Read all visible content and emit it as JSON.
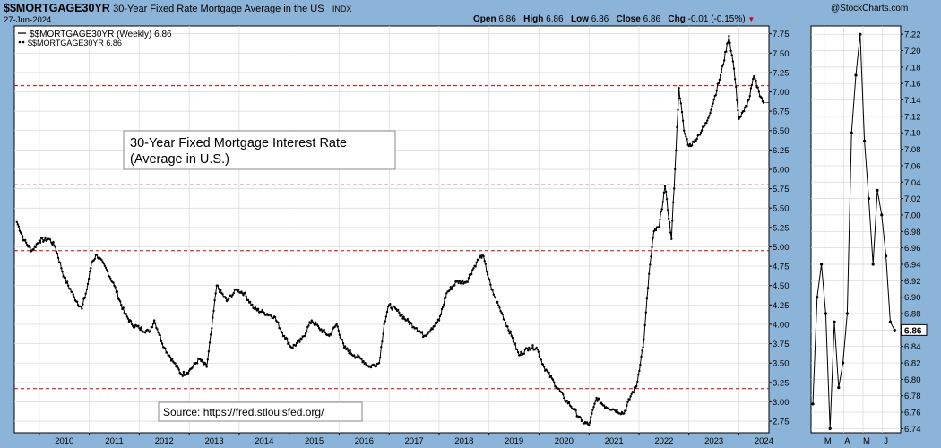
{
  "header": {
    "symbol": "$$MORTGAGE30YR",
    "description": "30-Year Fixed Rate Mortgage Average in the US",
    "exchange": "INDX",
    "date": "27-Jun-2024",
    "logo": "@StockCharts.com",
    "ohlc": {
      "open_label": "Open",
      "open": "6.86",
      "high_label": "High",
      "high": "6.86",
      "low_label": "Low",
      "low": "6.86",
      "close_label": "Close",
      "close": "6.86",
      "chg_label": "Chg",
      "chg": "-0.01 (-0.15%)"
    }
  },
  "legend": {
    "line_entry": "$$MORTGAGE30YR (Weekly) 6.86",
    "dot_entry": "$$MORTGAGE30YR 6.86"
  },
  "annotation": {
    "title_line1": "30-Year Fixed Mortgage Interest Rate",
    "title_line2": "(Average in U.S.)",
    "source": "Source: https://fred.stlouisfed.org/"
  },
  "colors": {
    "background": "#8cb4d8",
    "plot": "#ffffff",
    "line": "#000000",
    "reference_line": "#cc0000",
    "grid": "#d8d8d8"
  },
  "chart_data": [
    {
      "type": "line",
      "frequency": "weekly",
      "ylim": [
        2.6,
        7.85
      ],
      "y_ticks": [
        2.75,
        3.0,
        3.25,
        3.5,
        3.75,
        4.0,
        4.25,
        4.5,
        4.75,
        5.0,
        5.25,
        5.5,
        5.75,
        6.0,
        6.25,
        6.5,
        6.75,
        7.0,
        7.25,
        7.5,
        7.75
      ],
      "y_tick_labels": [
        "2.75",
        "3.00",
        "3.25",
        "3.50",
        "3.75",
        "4.00",
        "4.25",
        "4.50",
        "4.75",
        "5.00",
        "5.25",
        "5.50",
        "5.75",
        "6.00",
        "6.25",
        "6.50",
        "6.75",
        "7.00",
        "7.25",
        "7.50",
        "7.75"
      ],
      "x_ticks": [
        "2010",
        "2011",
        "2012",
        "2013",
        "2014",
        "2015",
        "2016",
        "2017",
        "2018",
        "2019",
        "2020",
        "2021",
        "2022",
        "2023",
        "2024"
      ],
      "xlim": [
        2009.5,
        2024.6
      ],
      "reference_lines": [
        7.08,
        5.8,
        4.95,
        3.17
      ],
      "grid": true,
      "current_value": "6.86",
      "series": [
        {
          "points": [
            [
              2009.55,
              5.32
            ],
            [
              2009.7,
              5.08
            ],
            [
              2009.85,
              4.95
            ],
            [
              2010.0,
              5.08
            ],
            [
              2010.2,
              5.1
            ],
            [
              2010.32,
              5.0
            ],
            [
              2010.5,
              4.6
            ],
            [
              2010.7,
              4.35
            ],
            [
              2010.85,
              4.2
            ],
            [
              2010.95,
              4.45
            ],
            [
              2011.05,
              4.8
            ],
            [
              2011.15,
              4.9
            ],
            [
              2011.35,
              4.7
            ],
            [
              2011.5,
              4.5
            ],
            [
              2011.7,
              4.15
            ],
            [
              2011.85,
              4.0
            ],
            [
              2012.0,
              3.95
            ],
            [
              2012.2,
              3.9
            ],
            [
              2012.3,
              4.05
            ],
            [
              2012.5,
              3.7
            ],
            [
              2012.7,
              3.5
            ],
            [
              2012.85,
              3.35
            ],
            [
              2013.0,
              3.4
            ],
            [
              2013.2,
              3.55
            ],
            [
              2013.35,
              3.45
            ],
            [
              2013.45,
              3.95
            ],
            [
              2013.55,
              4.5
            ],
            [
              2013.75,
              4.3
            ],
            [
              2013.95,
              4.45
            ],
            [
              2014.1,
              4.4
            ],
            [
              2014.3,
              4.2
            ],
            [
              2014.5,
              4.15
            ],
            [
              2014.7,
              4.1
            ],
            [
              2014.9,
              3.85
            ],
            [
              2015.05,
              3.7
            ],
            [
              2015.25,
              3.8
            ],
            [
              2015.45,
              4.05
            ],
            [
              2015.6,
              3.95
            ],
            [
              2015.8,
              3.85
            ],
            [
              2015.95,
              4.0
            ],
            [
              2016.1,
              3.7
            ],
            [
              2016.3,
              3.6
            ],
            [
              2016.45,
              3.55
            ],
            [
              2016.6,
              3.45
            ],
            [
              2016.8,
              3.5
            ],
            [
              2016.9,
              4.0
            ],
            [
              2017.0,
              4.25
            ],
            [
              2017.2,
              4.15
            ],
            [
              2017.35,
              4.05
            ],
            [
              2017.55,
              3.95
            ],
            [
              2017.7,
              3.85
            ],
            [
              2017.85,
              3.95
            ],
            [
              2018.0,
              4.05
            ],
            [
              2018.15,
              4.4
            ],
            [
              2018.35,
              4.55
            ],
            [
              2018.55,
              4.55
            ],
            [
              2018.75,
              4.8
            ],
            [
              2018.87,
              4.9
            ],
            [
              2019.05,
              4.45
            ],
            [
              2019.25,
              4.15
            ],
            [
              2019.45,
              3.85
            ],
            [
              2019.6,
              3.6
            ],
            [
              2019.8,
              3.7
            ],
            [
              2019.95,
              3.7
            ],
            [
              2020.1,
              3.45
            ],
            [
              2020.3,
              3.25
            ],
            [
              2020.5,
              3.05
            ],
            [
              2020.7,
              2.9
            ],
            [
              2020.85,
              2.75
            ],
            [
              2021.0,
              2.7
            ],
            [
              2021.15,
              3.05
            ],
            [
              2021.3,
              2.95
            ],
            [
              2021.5,
              2.9
            ],
            [
              2021.7,
              2.85
            ],
            [
              2021.85,
              3.1
            ],
            [
              2021.95,
              3.2
            ],
            [
              2022.1,
              3.8
            ],
            [
              2022.2,
              4.65
            ],
            [
              2022.3,
              5.2
            ],
            [
              2022.4,
              5.25
            ],
            [
              2022.52,
              5.78
            ],
            [
              2022.65,
              5.1
            ],
            [
              2022.72,
              6.0
            ],
            [
              2022.8,
              7.05
            ],
            [
              2022.9,
              6.5
            ],
            [
              2023.0,
              6.3
            ],
            [
              2023.1,
              6.35
            ],
            [
              2023.2,
              6.45
            ],
            [
              2023.35,
              6.6
            ],
            [
              2023.5,
              6.9
            ],
            [
              2023.65,
              7.25
            ],
            [
              2023.8,
              7.72
            ],
            [
              2023.9,
              7.3
            ],
            [
              2024.0,
              6.65
            ],
            [
              2024.1,
              6.75
            ],
            [
              2024.2,
              6.9
            ],
            [
              2024.3,
              7.2
            ],
            [
              2024.4,
              7.0
            ],
            [
              2024.49,
              6.86
            ]
          ]
        }
      ]
    },
    {
      "type": "line",
      "ylim": [
        6.735,
        7.23
      ],
      "y_ticks": [
        6.74,
        6.76,
        6.78,
        6.8,
        6.82,
        6.84,
        6.86,
        6.88,
        6.9,
        6.92,
        6.94,
        6.96,
        6.98,
        7.0,
        7.02,
        7.04,
        7.06,
        7.08,
        7.1,
        7.12,
        7.14,
        7.16,
        7.18,
        7.2,
        7.22
      ],
      "y_tick_labels": [
        "6.74",
        "6.76",
        "6.78",
        "6.80",
        "6.82",
        "6.84",
        "6.86",
        "6.88",
        "6.90",
        "6.92",
        "6.94",
        "6.96",
        "6.98",
        "7.00",
        "7.02",
        "7.04",
        "7.06",
        "7.08",
        "7.10",
        "7.12",
        "7.14",
        "7.16",
        "7.18",
        "7.20",
        "7.22"
      ],
      "x_ticks": [
        "M",
        "A",
        "M",
        "J"
      ],
      "current_value": "6.86",
      "series": [
        {
          "points": [
            [
              0,
              6.77
            ],
            [
              1,
              6.9
            ],
            [
              2,
              6.94
            ],
            [
              3,
              6.88
            ],
            [
              4,
              6.74
            ],
            [
              5,
              6.87
            ],
            [
              6,
              6.79
            ],
            [
              7,
              6.82
            ],
            [
              8,
              6.88
            ],
            [
              9,
              7.1
            ],
            [
              10,
              7.17
            ],
            [
              11,
              7.22
            ],
            [
              12,
              7.09
            ],
            [
              13,
              7.02
            ],
            [
              14,
              6.94
            ],
            [
              15,
              7.03
            ],
            [
              16,
              7.0
            ],
            [
              17,
              6.95
            ],
            [
              18,
              6.87
            ],
            [
              19,
              6.86
            ]
          ]
        }
      ]
    }
  ]
}
